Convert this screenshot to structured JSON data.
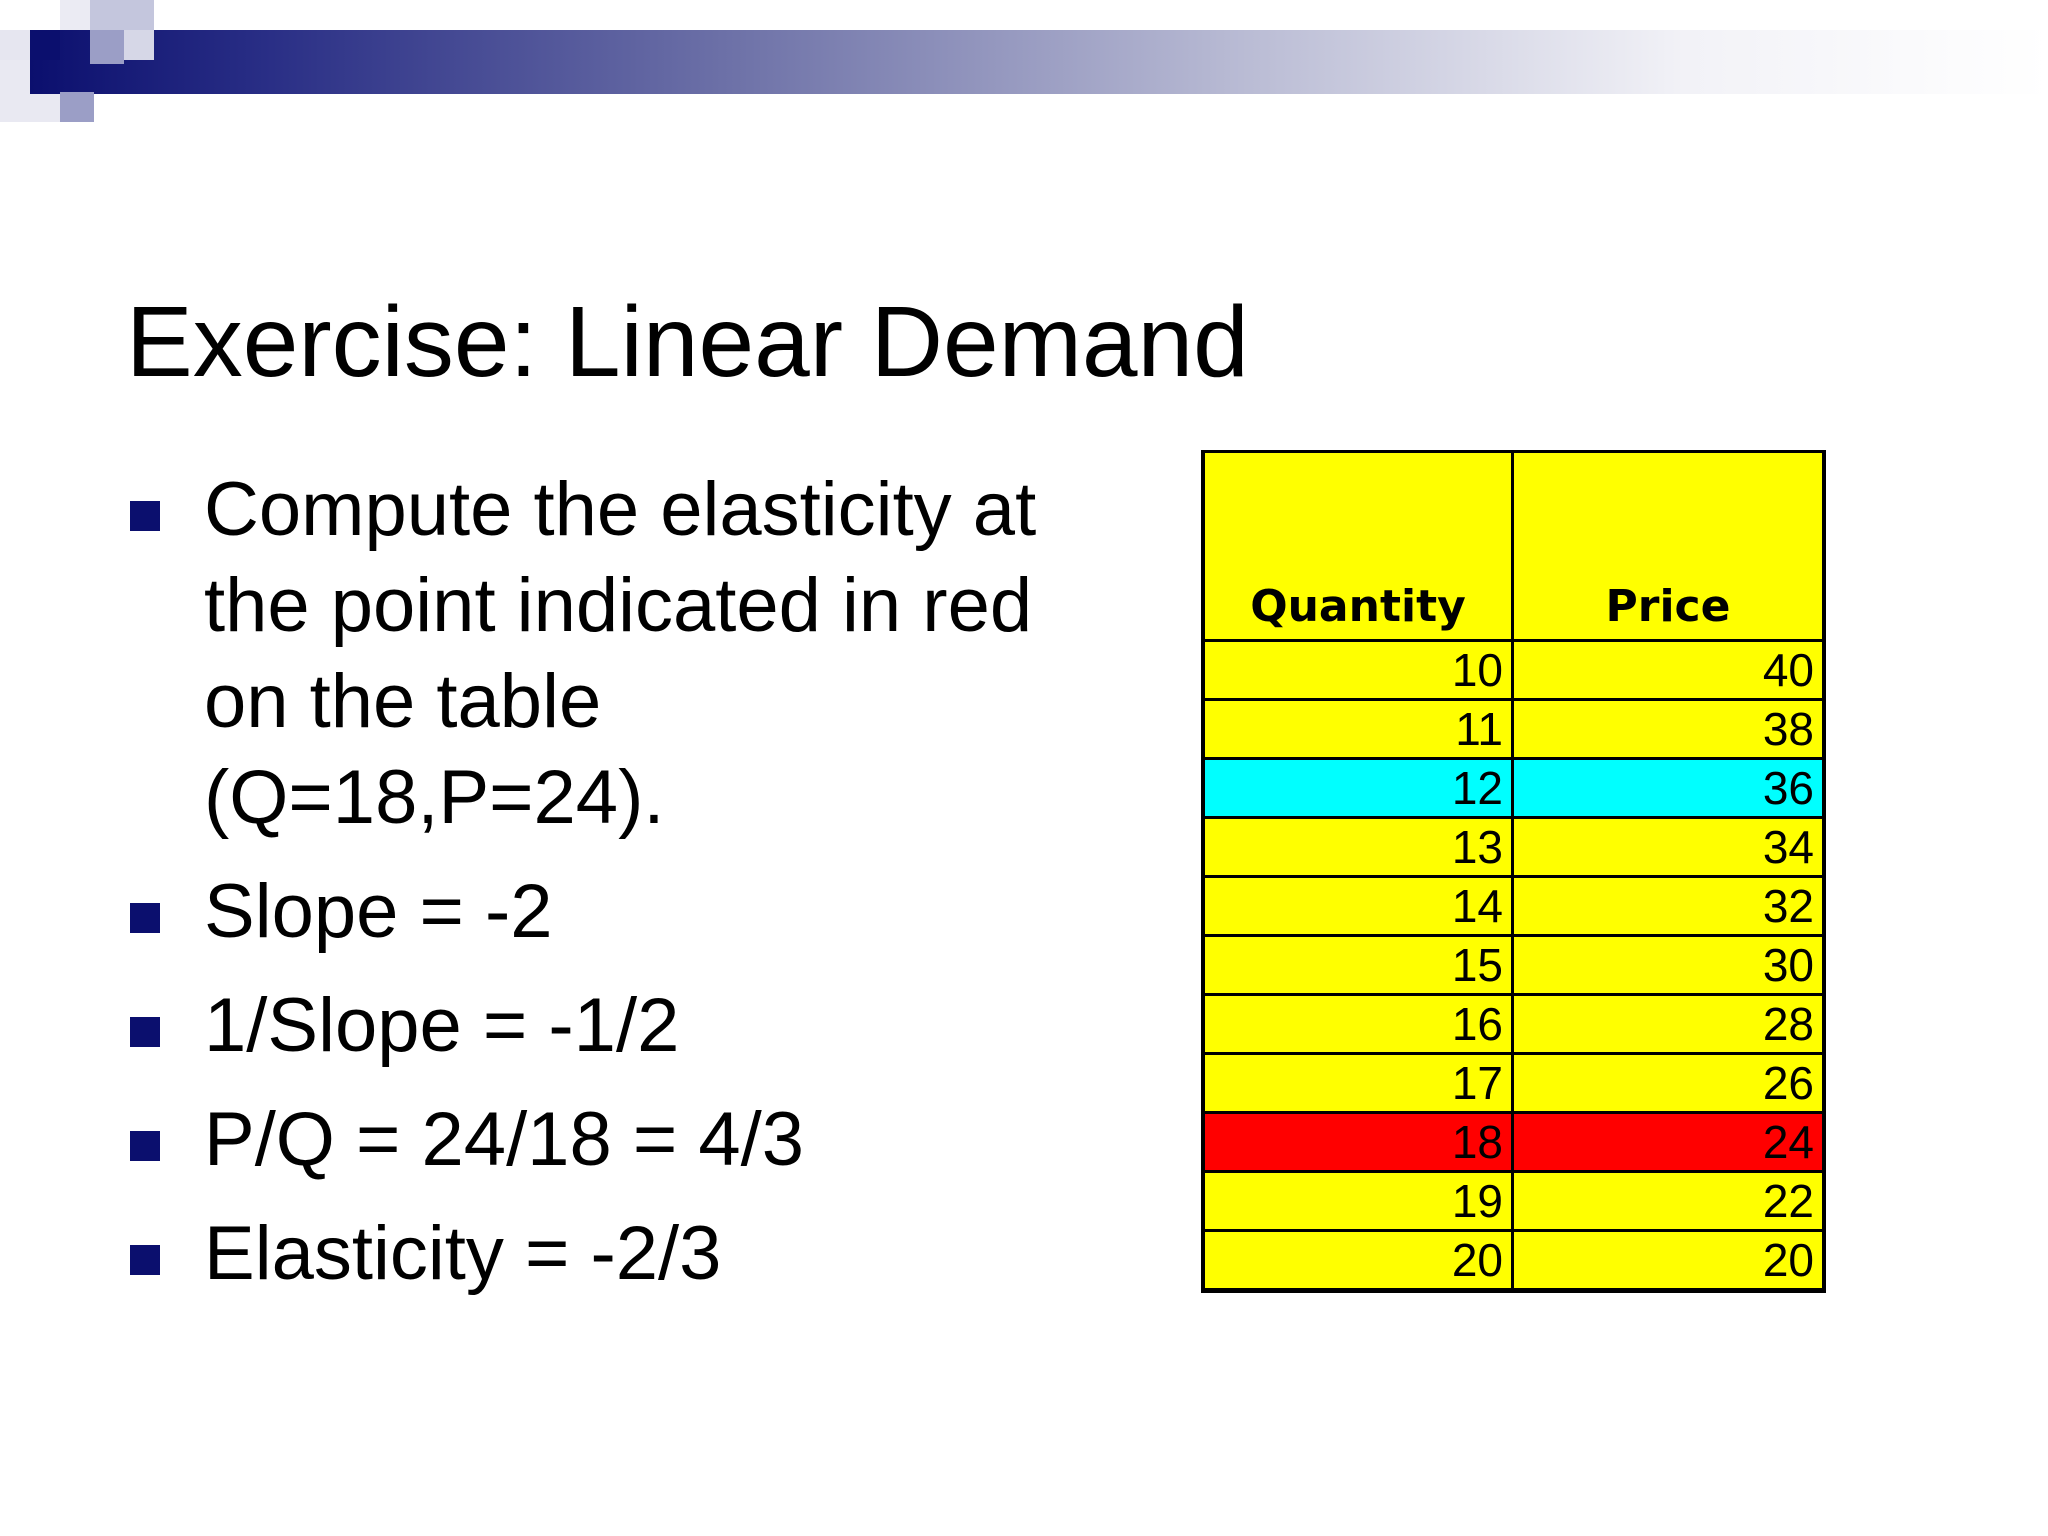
{
  "slide": {
    "title": "Exercise: Linear Demand",
    "bullets": [
      "Compute the elasticity at the point indicated in red on the table (Q=18,P=24).",
      "Slope = -2",
      "1/Slope = -1/2",
      "P/Q = 24/18 = 4/3",
      "Elasticity = -2/3"
    ]
  },
  "table": {
    "headers": [
      "Quantity",
      "Price"
    ],
    "rows": [
      {
        "quantity": "10",
        "price": "40",
        "highlight": "none"
      },
      {
        "quantity": "11",
        "price": "38",
        "highlight": "none"
      },
      {
        "quantity": "12",
        "price": "36",
        "highlight": "cyan"
      },
      {
        "quantity": "13",
        "price": "34",
        "highlight": "none"
      },
      {
        "quantity": "14",
        "price": "32",
        "highlight": "none"
      },
      {
        "quantity": "15",
        "price": "30",
        "highlight": "none"
      },
      {
        "quantity": "16",
        "price": "28",
        "highlight": "none"
      },
      {
        "quantity": "17",
        "price": "26",
        "highlight": "none"
      },
      {
        "quantity": "18",
        "price": "24",
        "highlight": "red"
      },
      {
        "quantity": "19",
        "price": "22",
        "highlight": "none"
      },
      {
        "quantity": "20",
        "price": "20",
        "highlight": "none"
      }
    ]
  },
  "colors": {
    "cell_background": "#ffff00",
    "highlight_cyan": "#00ffff",
    "highlight_red": "#ff0000",
    "bullet_marker": "#0b0f6e",
    "banner_dark": "#0b0f6e"
  }
}
